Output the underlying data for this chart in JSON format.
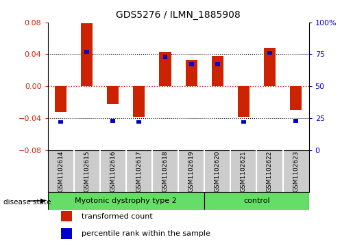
{
  "title": "GDS5276 / ILMN_1885908",
  "samples": [
    "GSM1102614",
    "GSM1102615",
    "GSM1102616",
    "GSM1102617",
    "GSM1102618",
    "GSM1102619",
    "GSM1102620",
    "GSM1102621",
    "GSM1102622",
    "GSM1102623"
  ],
  "transformed_count": [
    -0.032,
    0.079,
    -0.022,
    -0.038,
    0.043,
    0.033,
    0.038,
    -0.038,
    0.048,
    -0.03
  ],
  "percentile_rank": [
    0.22,
    0.77,
    0.23,
    0.22,
    0.73,
    0.67,
    0.67,
    0.22,
    0.76,
    0.23
  ],
  "ylim_left": [
    -0.08,
    0.08
  ],
  "ylim_right": [
    0,
    100
  ],
  "left_ticks": [
    -0.08,
    -0.04,
    0,
    0.04,
    0.08
  ],
  "right_ticks": [
    0,
    25,
    50,
    75,
    100
  ],
  "bar_color_red": "#cc2200",
  "bar_color_blue": "#0000cc",
  "dotted_line_color": "#cc0000",
  "background_color": "#ffffff",
  "label_box_color": "#cccccc",
  "green_color": "#66dd66",
  "bar_width": 0.45,
  "blue_bar_width": 0.18,
  "blue_bar_height": 0.005,
  "n_disease": 6,
  "n_control": 4
}
